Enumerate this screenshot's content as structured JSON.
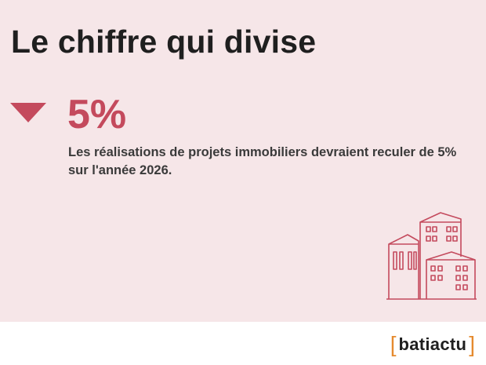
{
  "title": "Le chiffre qui divise",
  "indicator": {
    "direction": "down",
    "icon": "down-triangle-icon",
    "color": "#c44a5d"
  },
  "figure": "5%",
  "description": "Les réalisations de projets immobiliers devraient reculer de 5% sur l'année 2026.",
  "illustration_icon": "buildings-icon",
  "footer": {
    "logo_open": "[",
    "logo_text": "batiactu",
    "logo_close": "]"
  },
  "colors": {
    "background": "#f6e6e8",
    "accent": "#c44a5d",
    "text": "#1f1f1f",
    "logo_bracket": "#e58a2e"
  }
}
